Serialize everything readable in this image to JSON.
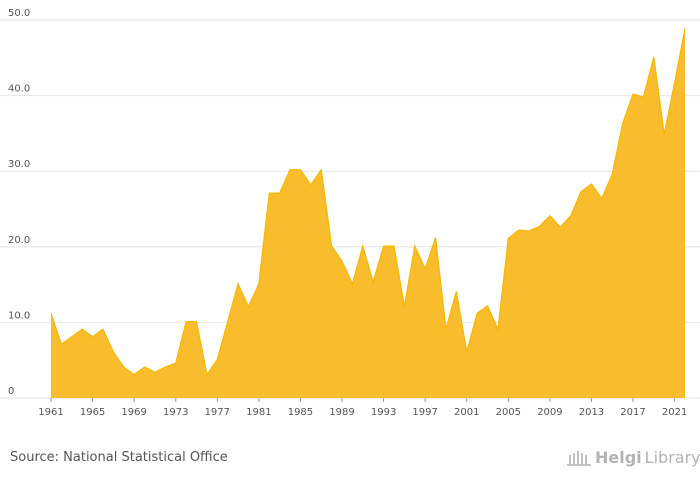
{
  "chart_data": {
    "type": "area",
    "x": [
      1961,
      1962,
      1963,
      1964,
      1965,
      1966,
      1967,
      1968,
      1969,
      1970,
      1971,
      1972,
      1973,
      1974,
      1975,
      1976,
      1977,
      1978,
      1979,
      1980,
      1981,
      1982,
      1983,
      1984,
      1985,
      1986,
      1987,
      1988,
      1989,
      1990,
      1991,
      1992,
      1993,
      1994,
      1995,
      1996,
      1997,
      1998,
      1999,
      2000,
      2001,
      2002,
      2003,
      2004,
      2005,
      2006,
      2007,
      2008,
      2009,
      2010,
      2011,
      2012,
      2013,
      2014,
      2015,
      2016,
      2017,
      2018,
      2019,
      2020,
      2021,
      2022
    ],
    "values": [
      11.2,
      7.1,
      8.1,
      9.1,
      8.1,
      9.1,
      6.1,
      4.1,
      3.1,
      4.1,
      3.4,
      4.1,
      4.6,
      10.1,
      10.1,
      3.1,
      5.1,
      10.1,
      15.1,
      12.1,
      15.1,
      27.1,
      27.1,
      30.2,
      30.2,
      28.2,
      30.2,
      20.1,
      18.1,
      15.1,
      20.1,
      15.3,
      20.1,
      20.1,
      12.1,
      20.1,
      17.1,
      21.2,
      9.1,
      14.1,
      6.1,
      11.2,
      12.2,
      9.1,
      21.1,
      22.2,
      22.1,
      22.7,
      24.1,
      22.6,
      24.1,
      27.3,
      28.3,
      26.4,
      29.6,
      36.3,
      40.2,
      39.8,
      45.1,
      34.9,
      41.7,
      48.9
    ],
    "x_ticks": [
      "1961",
      "1965",
      "1969",
      "1973",
      "1977",
      "1981",
      "1985",
      "1989",
      "1993",
      "1997",
      "2001",
      "2005",
      "2009",
      "2013",
      "2017",
      "2021"
    ],
    "y_ticks": [
      "0",
      "10.0",
      "20.0",
      "30.0",
      "40.0",
      "50.0"
    ],
    "ylim": [
      0,
      50
    ],
    "xlim": [
      1961,
      2022
    ],
    "grid": true,
    "fill_color": "#F9BC2C",
    "line_color": "#F5B800"
  },
  "footer": {
    "source": "Source: National Statistical Office",
    "brand_part1": "Helgi",
    "brand_part2": "Library."
  }
}
